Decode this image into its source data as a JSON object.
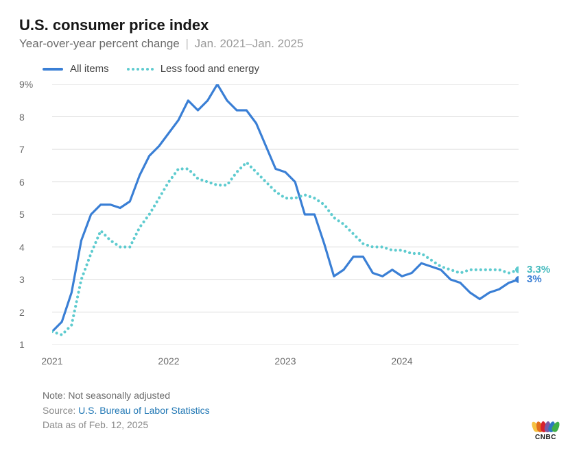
{
  "title": "U.S. consumer price index",
  "subtitle_main": "Year-over-year percent change",
  "subtitle_range": "Jan. 2021–Jan. 2025",
  "legend": {
    "series1": "All items",
    "series2": "Less food and energy"
  },
  "chart": {
    "type": "line",
    "background_color": "#ffffff",
    "grid_color": "#d9d9d9",
    "axis_text_color": "#6b6b6b",
    "axis_fontsize": 14,
    "ylim": [
      1,
      9
    ],
    "yticks": [
      1,
      2,
      3,
      4,
      5,
      6,
      7,
      8,
      9
    ],
    "ytick_labels": [
      "1",
      "2",
      "3",
      "4",
      "5",
      "6",
      "7",
      "8",
      "9%"
    ],
    "x_start_month": "2021-01",
    "x_end_month": "2025-01",
    "xtick_months": [
      "2021-01",
      "2022-01",
      "2023-01",
      "2024-01"
    ],
    "xtick_labels": [
      "2021",
      "2022",
      "2023",
      "2024"
    ],
    "series": [
      {
        "name": "All items",
        "color": "#3a7fd5",
        "line_width": 3.2,
        "style": "solid",
        "end_label": "3%",
        "end_label_color": "#3a7fd5",
        "end_marker_radius": 5,
        "values": [
          1.4,
          1.7,
          2.6,
          4.2,
          5.0,
          5.3,
          5.3,
          5.2,
          5.4,
          6.2,
          6.8,
          7.1,
          7.5,
          7.9,
          8.5,
          8.2,
          8.5,
          9.0,
          8.5,
          8.2,
          8.2,
          7.8,
          7.1,
          6.4,
          6.3,
          6.0,
          5.0,
          5.0,
          4.1,
          3.1,
          3.3,
          3.7,
          3.7,
          3.2,
          3.1,
          3.3,
          3.1,
          3.2,
          3.5,
          3.4,
          3.3,
          3.0,
          2.9,
          2.6,
          2.4,
          2.6,
          2.7,
          2.9,
          3.0
        ]
      },
      {
        "name": "Less food and energy",
        "color": "#5ecbcf",
        "line_width": 3.0,
        "style": "dotted",
        "dot_radius": 2.1,
        "dot_gap": 7,
        "end_label": "3.3%",
        "end_label_color": "#43b9bd",
        "end_marker_radius": 5,
        "values": [
          1.4,
          1.3,
          1.6,
          3.0,
          3.8,
          4.5,
          4.2,
          4.0,
          4.0,
          4.6,
          5.0,
          5.5,
          6.0,
          6.4,
          6.4,
          6.1,
          6.0,
          5.9,
          5.9,
          6.3,
          6.6,
          6.3,
          6.0,
          5.7,
          5.5,
          5.5,
          5.6,
          5.5,
          5.3,
          4.9,
          4.7,
          4.4,
          4.1,
          4.0,
          4.0,
          3.9,
          3.9,
          3.8,
          3.8,
          3.6,
          3.4,
          3.3,
          3.2,
          3.3,
          3.3,
          3.3,
          3.3,
          3.2,
          3.3
        ]
      }
    ]
  },
  "footer": {
    "note": "Note: Not seasonally adjusted",
    "source_prefix": "Source: ",
    "source_link_text": "U.S. Bureau of Labor Statistics",
    "asof": "Data as of Feb. 12, 2025"
  },
  "logo": {
    "text": "CNBC",
    "feather_colors": [
      "#f6c344",
      "#e36f1e",
      "#d7232e",
      "#7b5aa6",
      "#2e78c1",
      "#3fae49"
    ]
  }
}
